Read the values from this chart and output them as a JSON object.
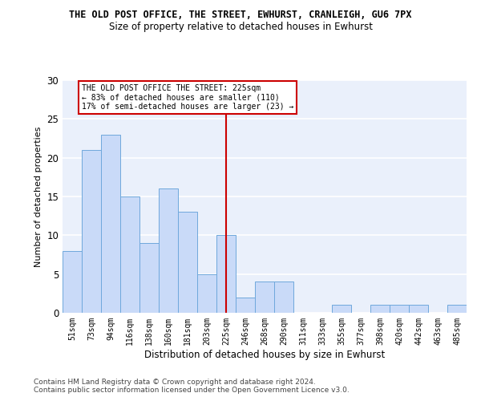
{
  "title": "THE OLD POST OFFICE, THE STREET, EWHURST, CRANLEIGH, GU6 7PX",
  "subtitle": "Size of property relative to detached houses in Ewhurst",
  "xlabel": "Distribution of detached houses by size in Ewhurst",
  "ylabel": "Number of detached properties",
  "categories": [
    "51sqm",
    "73sqm",
    "94sqm",
    "116sqm",
    "138sqm",
    "160sqm",
    "181sqm",
    "203sqm",
    "225sqm",
    "246sqm",
    "268sqm",
    "290sqm",
    "311sqm",
    "333sqm",
    "355sqm",
    "377sqm",
    "398sqm",
    "420sqm",
    "442sqm",
    "463sqm",
    "485sqm"
  ],
  "values": [
    8,
    21,
    23,
    15,
    9,
    16,
    13,
    5,
    10,
    2,
    4,
    4,
    0,
    0,
    1,
    0,
    1,
    1,
    1,
    0,
    1
  ],
  "bar_color": "#c9daf8",
  "bar_edge_color": "#6fa8dc",
  "bg_color": "#eaf0fb",
  "grid_color": "#ffffff",
  "vline_x": 8,
  "vline_color": "#cc0000",
  "annotation_text": "THE OLD POST OFFICE THE STREET: 225sqm\n← 83% of detached houses are smaller (110)\n17% of semi-detached houses are larger (23) →",
  "annotation_box_color": "#cc0000",
  "ylim": [
    0,
    30
  ],
  "yticks": [
    0,
    5,
    10,
    15,
    20,
    25,
    30
  ],
  "footer_line1": "Contains HM Land Registry data © Crown copyright and database right 2024.",
  "footer_line2": "Contains public sector information licensed under the Open Government Licence v3.0."
}
